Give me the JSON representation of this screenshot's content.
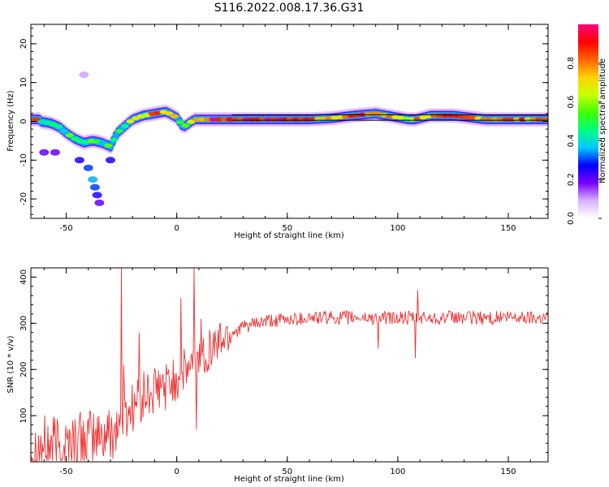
{
  "title": "S116.2022.008.17.36.G31",
  "chart_data": [
    {
      "type": "heatmap",
      "xlabel": "Height of straight line (km)",
      "ylabel": "Frequency (Hz)",
      "xlim": [
        -66,
        168
      ],
      "ylim": [
        -25,
        25
      ],
      "xticks": [
        "-50",
        "0",
        "50",
        "100",
        "150"
      ],
      "yticks": [
        "-20",
        "-10",
        "0",
        "10",
        "20"
      ],
      "colorbar": {
        "label": "Normalized spectral amplitude",
        "range": [
          0,
          1
        ],
        "ticks": [
          "0.0",
          "0.2",
          "0.4",
          "0.6",
          "0.8"
        ],
        "colors": [
          "#ffffff",
          "#d9b3ff",
          "#7a00ff",
          "#0000ff",
          "#00c8ff",
          "#00ff80",
          "#40ff00",
          "#c8ff00",
          "#ffd200",
          "#ff6400",
          "#ff0000",
          "#ff0080"
        ]
      },
      "ridge": {
        "x": [
          -62,
          -57,
          -53,
          -50,
          -46,
          -42,
          -38,
          -34,
          -30,
          -27,
          -24,
          -20,
          -15,
          -10,
          -5,
          0,
          3,
          8,
          15,
          25,
          40,
          55,
          60,
          70,
          80,
          90,
          95,
          100,
          105,
          108,
          115,
          125,
          140,
          155,
          168
        ],
        "y": [
          0,
          -0.5,
          -1.5,
          -3,
          -4.5,
          -5.5,
          -5,
          -5.5,
          -6.5,
          -3,
          -1.5,
          0.5,
          1.5,
          2,
          2.5,
          1,
          -1.5,
          0.5,
          0.5,
          0.5,
          0.5,
          0.5,
          0.5,
          0.8,
          1.5,
          2,
          1.5,
          1,
          0.5,
          0.5,
          1.5,
          1.5,
          0.5,
          0.5,
          0.5
        ],
        "amplitude": [
          0.5,
          0.5,
          0.45,
          0.5,
          0.45,
          0.5,
          0.5,
          0.45,
          0.6,
          0.45,
          0.5,
          0.7,
          0.75,
          0.75,
          0.8,
          0.6,
          0.55,
          0.7,
          0.9,
          0.9,
          0.95,
          0.9,
          0.85,
          0.8,
          0.85,
          0.8,
          0.75,
          0.7,
          0.65,
          0.8,
          0.75,
          0.8,
          0.85,
          0.8,
          0.85
        ]
      },
      "cursor_band": {
        "x": [
          25,
          168
        ],
        "y": [
          0.3,
          1.7
        ]
      },
      "scatter": [
        {
          "x": -40,
          "y": -12,
          "amp": 0.3
        },
        {
          "x": -38,
          "y": -15,
          "amp": 0.35
        },
        {
          "x": -37,
          "y": -17,
          "amp": 0.3
        },
        {
          "x": -36,
          "y": -19,
          "amp": 0.25
        },
        {
          "x": -35,
          "y": -21,
          "amp": 0.2
        },
        {
          "x": -44,
          "y": -10,
          "amp": 0.25
        },
        {
          "x": -55,
          "y": -8,
          "amp": 0.2
        },
        {
          "x": -60,
          "y": -8,
          "amp": 0.2
        },
        {
          "x": -42,
          "y": 12,
          "amp": 0.1
        },
        {
          "x": -30,
          "y": -10,
          "amp": 0.25
        }
      ]
    },
    {
      "type": "line",
      "xlabel": "Height of straight line (km)",
      "ylabel": "SNR (10 * v/v)",
      "xlim": [
        -66,
        168
      ],
      "ylim": [
        0,
        420
      ],
      "xticks": [
        "-50",
        "0",
        "50",
        "100",
        "150"
      ],
      "yticks": [
        "100",
        "200",
        "300",
        "400"
      ],
      "color": "#ee3333",
      "trend": {
        "x": [
          -66,
          -50,
          -40,
          -30,
          -25,
          -20,
          -15,
          -10,
          -5,
          0,
          5,
          10,
          15,
          20,
          25,
          30,
          40,
          50,
          60,
          80,
          100,
          120,
          140,
          168
        ],
        "y": [
          30,
          40,
          50,
          60,
          90,
          120,
          140,
          150,
          165,
          180,
          200,
          225,
          245,
          265,
          280,
          292,
          303,
          308,
          312,
          312,
          311,
          312,
          312,
          313
        ]
      },
      "spikes": [
        {
          "x": -25,
          "y": 420
        },
        {
          "x": -24,
          "y": 210
        },
        {
          "x": -17,
          "y": 280
        },
        {
          "x": 2,
          "y": 355
        },
        {
          "x": 8,
          "y": 420
        },
        {
          "x": 9,
          "y": 70
        },
        {
          "x": 11,
          "y": 310
        },
        {
          "x": 91,
          "y": 245
        },
        {
          "x": 108,
          "y": 225
        },
        {
          "x": 109,
          "y": 372
        }
      ]
    }
  ]
}
